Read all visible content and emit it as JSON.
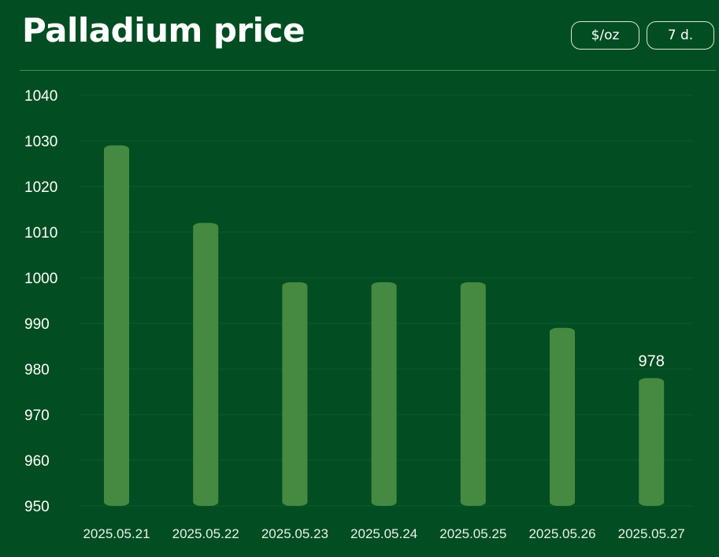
{
  "header": {
    "title": "Palladium price",
    "unit_button": "$/oz",
    "range_button": "7 d."
  },
  "colors": {
    "background": "#034d22",
    "bar": "#468a41",
    "text": "#ffffff"
  },
  "chart_data": {
    "type": "bar",
    "title": "Palladium price",
    "xlabel": "",
    "ylabel": "",
    "categories": [
      "2025.05.21",
      "2025.05.22",
      "2025.05.23",
      "2025.05.24",
      "2025.05.25",
      "2025.05.26",
      "2025.05.27"
    ],
    "values": [
      1029,
      1012,
      999,
      999,
      999,
      989,
      978
    ],
    "ylim": [
      950,
      1040
    ],
    "yticks": [
      950,
      960,
      970,
      980,
      990,
      1000,
      1010,
      1020,
      1030,
      1040
    ],
    "data_labels": [
      {
        "category": "2025.05.27",
        "text": "978"
      }
    ],
    "grid": true,
    "legend": "none"
  }
}
